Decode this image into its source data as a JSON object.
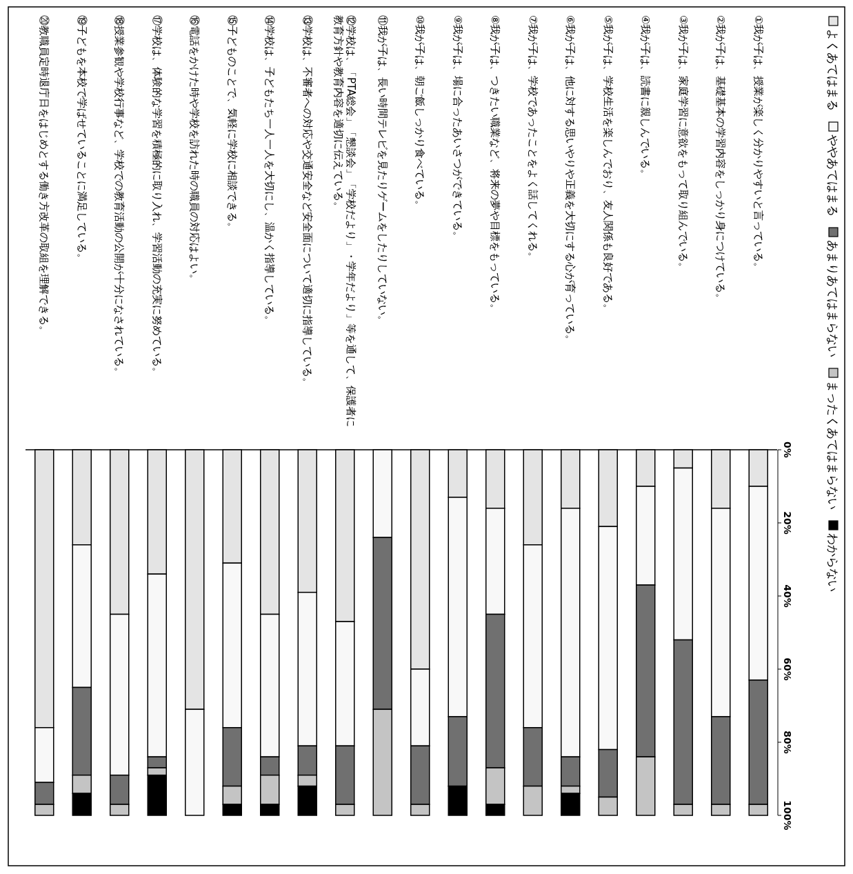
{
  "chart_data": {
    "type": "bar",
    "stacked": true,
    "legend": "right",
    "categories": [
      "⑳教職員定時退庁日をはじめとする働き方改革の取組を理解できる。",
      "⑲子どもを本校で学ばせていることに満足している。",
      "⑱授業参観や学校行事など、学校での教育活動の公開が十分になされている。",
      "⑰学校は、体験的な学習を積極的に取り入れ、学習活動の充実に努めている。",
      "⑯電話をかけた時や学校を訪れた時の職員の対応はよい。",
      "⑮子どものことで、気軽に学校に相談できる。",
      "⑭学校は、子どもたち一人一人を大切にし、温かく指導している。",
      "⑬学校は、不審者への対応や交通安全など安全面について適切に指導している。",
      "⑫学校は、「PTA総会」「懇談会」「学校だより」・学年だより」等を通して、保護者に教育方針や教育内容を適切に伝えている。",
      "⑪我が子は、長い時間テレビを見たりゲームをしたりしていない。",
      "⑩我が子は、朝ご飯しっかり食べている。",
      "⑨我が子は、場に合ったあいさつができている。",
      "⑧我が子は、つきたい職業など、将来の夢や目標をもっている。",
      "⑦我が子は、学校であったことをよく話してくれる。",
      "⑥我が子は、他に対する思いやりや正義を大切にする心が育っている。",
      "⑤我が子は、学校生活を楽しんでおり、友人関係も良好である。",
      "④我が子は、読書に親しんでいる。",
      "③我が子は、家庭学習に意欲をもって取り組んでいる。",
      "②我が子は、基礎基本の学習内容をしっかり身につけている。",
      "①我が子は、授業が楽しく分かりやすいと言っている。"
    ],
    "series": [
      {
        "name": "よくあてはまる",
        "color": "#e4e4e4",
        "values": [
          76,
          26,
          45,
          34,
          71,
          31,
          45,
          39,
          47,
          0,
          60,
          13,
          16,
          26,
          16,
          21,
          10,
          5,
          16,
          10
        ]
      },
      {
        "name": "ややあてはまる",
        "color": "#f8f8f8",
        "values": [
          15,
          39,
          44,
          50,
          29,
          45,
          39,
          42,
          34,
          24,
          21,
          60,
          29,
          50,
          68,
          61,
          27,
          47,
          57,
          53
        ]
      },
      {
        "name": "あまりあてはまらない",
        "color": "#707070",
        "values": [
          6,
          24,
          8,
          3,
          0,
          16,
          5,
          8,
          16,
          47,
          16,
          19,
          42,
          16,
          8,
          13,
          47,
          45,
          24,
          34
        ]
      },
      {
        "name": "まったくあてはまらない",
        "color": "#c4c4c4",
        "values": [
          3,
          5,
          3,
          2,
          0,
          5,
          8,
          3,
          3,
          29,
          3,
          0,
          10,
          8,
          2,
          5,
          16,
          3,
          3,
          3
        ]
      },
      {
        "name": "わからない",
        "color": "#000000",
        "values": [
          0,
          6,
          0,
          11,
          0,
          3,
          3,
          8,
          0,
          0,
          0,
          8,
          3,
          0,
          6,
          0,
          0,
          0,
          0,
          0
        ]
      }
    ],
    "ylim": [
      100,
      0
    ],
    "yticks": [
      {
        "value": 0,
        "label": "0%"
      },
      {
        "value": 20,
        "label": "20%"
      },
      {
        "value": 40,
        "label": "40%"
      },
      {
        "value": 60,
        "label": "60%"
      },
      {
        "value": 80,
        "label": "80%"
      },
      {
        "value": 100,
        "label": "100%"
      }
    ]
  }
}
